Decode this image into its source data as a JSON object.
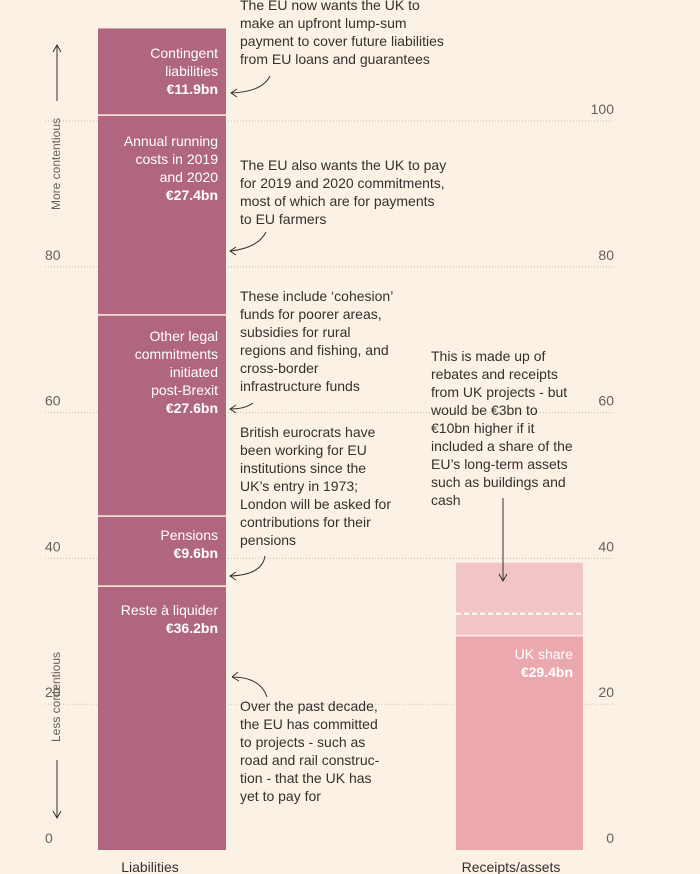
{
  "chart_data": {
    "type": "bar",
    "stacked": true,
    "categories": [
      "Liabilities",
      "Receipts/assets"
    ],
    "ylim": [
      0,
      100
    ],
    "yticks": [
      0,
      20,
      40,
      60,
      80,
      100
    ],
    "colors": {
      "liabilities": "#b0667f",
      "uk_share": "#eba8ae",
      "extra": "#f2c4c5",
      "background": "#fcf1e5"
    },
    "liabilities": [
      {
        "name": "Reste à liquider",
        "lines": [
          "Reste à liquider"
        ],
        "value_label": "€36.2bn",
        "value": 36.2
      },
      {
        "name": "Pensions",
        "lines": [
          "Pensions"
        ],
        "value_label": "€9.6bn",
        "value": 9.6
      },
      {
        "name": "Other legal commitments initiated post-Brexit",
        "lines": [
          "Other legal",
          "commitments",
          "initiated",
          "post-Brexit"
        ],
        "value_label": "€27.6bn",
        "value": 27.6
      },
      {
        "name": "Annual running costs in 2019 and 2020",
        "lines": [
          "Annual running",
          "costs in 2019",
          "and 2020"
        ],
        "value_label": "€27.4bn",
        "value": 27.4
      },
      {
        "name": "Contingent liabilities",
        "lines": [
          "Contingent",
          "liabilities"
        ],
        "value_label": "€11.9bn",
        "value": 11.9
      }
    ],
    "receipts": [
      {
        "name": "UK share",
        "lines": [
          "UK share"
        ],
        "value_label": "€29.4bn",
        "value": 29.4
      },
      {
        "name": "Additional share of long-term assets (€3bn to €10bn)",
        "lines": [],
        "value_label": "",
        "value": 3,
        "upper_value": 10
      }
    ],
    "annotations": {
      "contingent": [
        "The EU now wants the UK to",
        "make an upfront lump-sum",
        "payment to cover future liabilities",
        "from EU loans and guarantees"
      ],
      "running": [
        "The EU also wants the UK to pay",
        "for 2019 and 2020 commitments,",
        "most of which are for payments",
        "to EU farmers"
      ],
      "legal": [
        "These include ‘cohesion’",
        "funds for poorer areas,",
        "subsidies for rural",
        "regions and fishing, and",
        "cross-border",
        "infrastructure funds"
      ],
      "pensions": [
        "British eurocrats have",
        "been working for EU",
        "institutions since the",
        "UK’s entry in 1973;",
        "London will be asked for",
        "contributions for their",
        "pensions"
      ],
      "reste": [
        "Over the past decade,",
        "the EU has committed",
        "to projects - such as",
        "road and rail construc-",
        "tion - that the UK has",
        "yet to pay for"
      ],
      "receipts": [
        "This is made up of",
        "rebates and receipts",
        "from UK projects - but",
        "would be €3bn to",
        "€10bn higher if it",
        "included a share of the",
        "EU’s long-term assets",
        "such as buildings and",
        "cash"
      ]
    },
    "side_labels": {
      "top": "More contentious",
      "bottom": "Less contentious"
    }
  }
}
